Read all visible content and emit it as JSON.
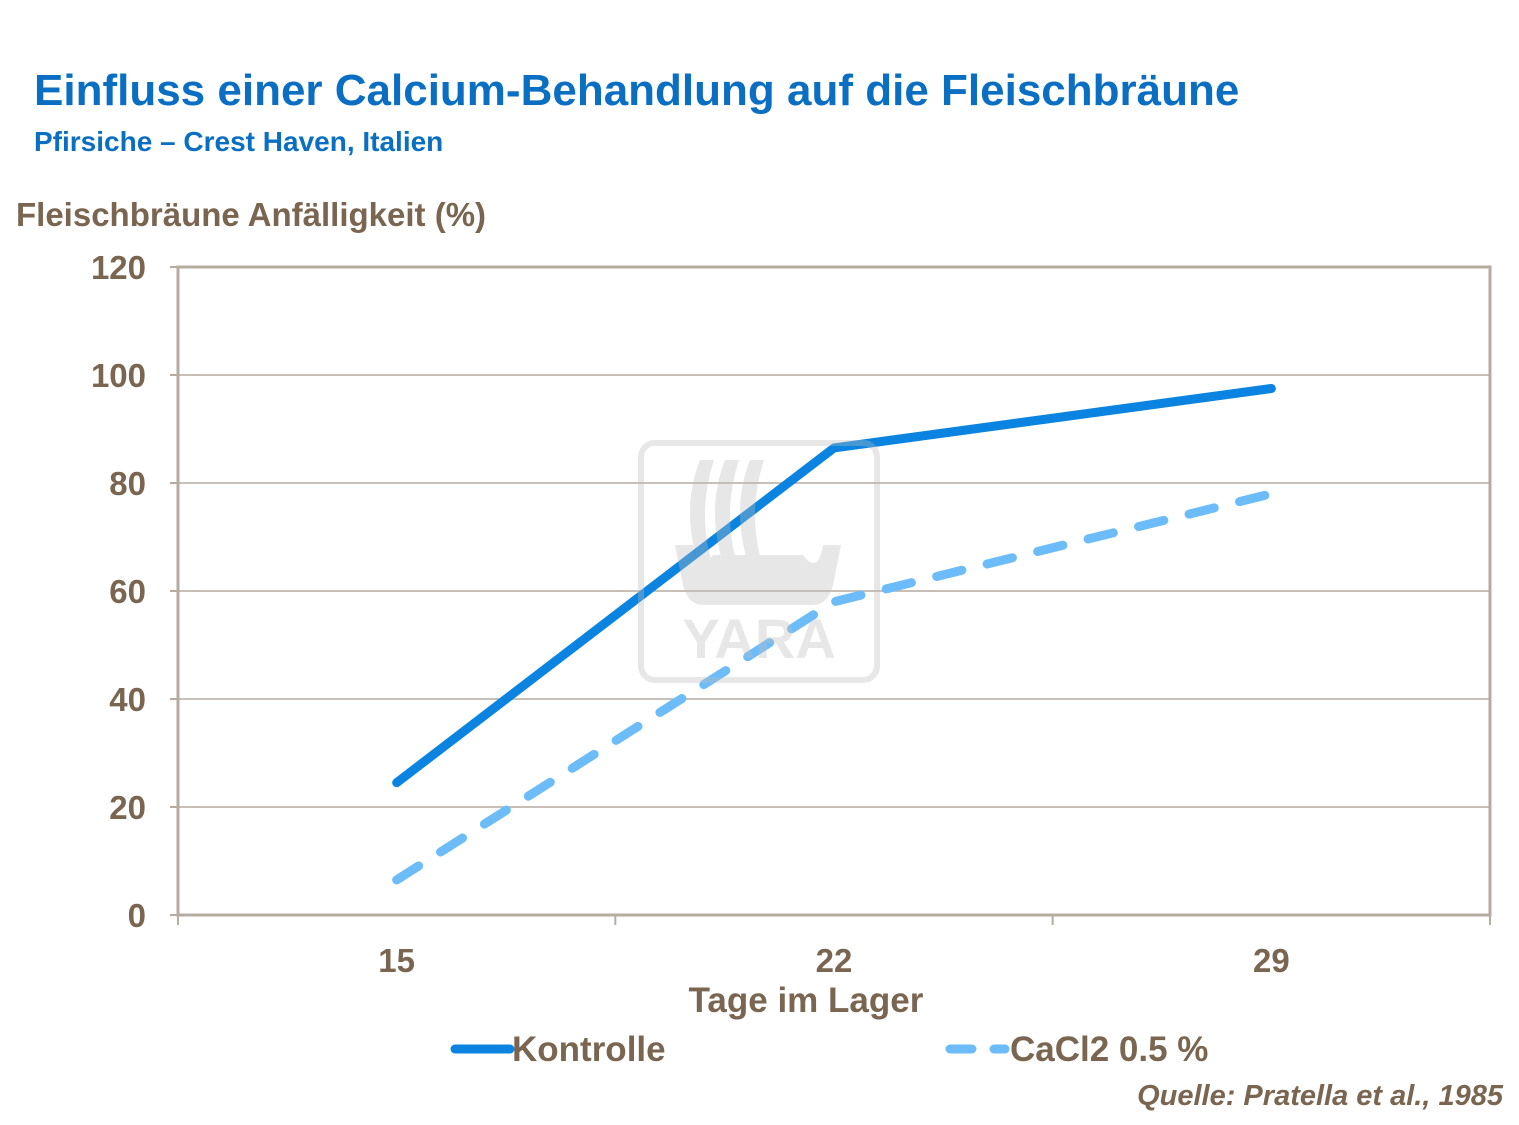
{
  "chart_data": {
    "type": "line",
    "title": "Einfluss einer Calcium-Behandlung auf die Fleischbräune",
    "subtitle": "Pfirsiche – Crest Haven, Italien",
    "xlabel": "Tage im Lager",
    "ylabel": "Fleischbräune Anfälligkeit (%)",
    "categories": [
      "15",
      "22",
      "29"
    ],
    "ylim": [
      0,
      120
    ],
    "yticks": [
      "0",
      "20",
      "40",
      "60",
      "80",
      "100",
      "120"
    ],
    "grid": true,
    "legend_position": "bottom",
    "series": [
      {
        "name": "Kontrolle",
        "values": [
          24.5,
          86.5,
          97.5
        ],
        "color": "#0a84e0",
        "style": "solid"
      },
      {
        "name": "CaCl2 0.5 %",
        "values": [
          6.5,
          58,
          78
        ],
        "color": "#6bbcf8",
        "style": "dashed"
      }
    ],
    "source": "Quelle: Pratella et al., 1985",
    "watermark": "YARA"
  }
}
